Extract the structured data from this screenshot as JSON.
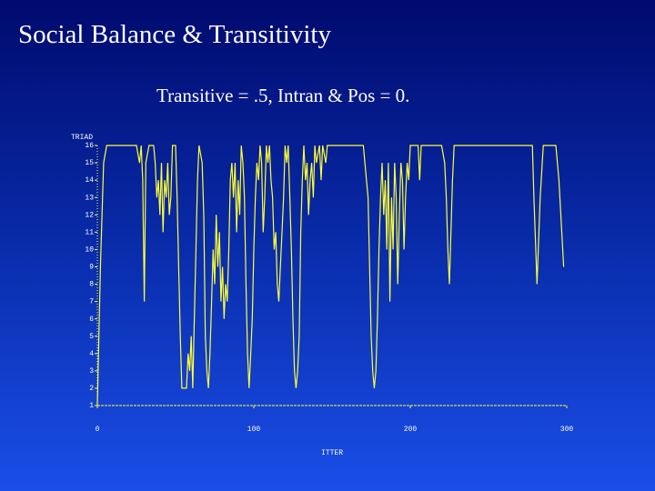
{
  "chart_data": {
    "type": "line",
    "title": "Social Balance & Transitivity",
    "subtitle": "Transitive = .5, Intran & Pos = 0.",
    "y_label": "TRIAD",
    "x_label": "ITTER",
    "xlim": [
      0,
      300
    ],
    "xticks": [
      0,
      100,
      200,
      300
    ],
    "ylim": [
      1,
      16
    ],
    "yticks": [
      1,
      2,
      3,
      4,
      5,
      6,
      7,
      8,
      9,
      10,
      11,
      12,
      13,
      14,
      15,
      16
    ],
    "series": [
      {
        "color": "#ffff33",
        "x": [
          0,
          2,
          4,
          6,
          25,
          27,
          28,
          29,
          30,
          31,
          33,
          36,
          37,
          38,
          39,
          40,
          41,
          42,
          43,
          44,
          45,
          46,
          47,
          48,
          50,
          51,
          52,
          53,
          54,
          55,
          57,
          58,
          59,
          60,
          61,
          62,
          63,
          64,
          65,
          67,
          68,
          69,
          70,
          71,
          72,
          73,
          74,
          75,
          76,
          77,
          78,
          79,
          80,
          81,
          82,
          83,
          84,
          85,
          86,
          87,
          88,
          89,
          90,
          91,
          92,
          93,
          94,
          95,
          96,
          97,
          98,
          99,
          100,
          101,
          102,
          103,
          104,
          105,
          106,
          107,
          108,
          109,
          110,
          111,
          112,
          113,
          114,
          115,
          116,
          117,
          118,
          119,
          120,
          121,
          122,
          123,
          124,
          125,
          126,
          127,
          128,
          129,
          130,
          131,
          132,
          133,
          134,
          135,
          136,
          137,
          138,
          139,
          140,
          142,
          143,
          144,
          146,
          147,
          150,
          170,
          172,
          173,
          174,
          175,
          176,
          177,
          178,
          179,
          180,
          181,
          182,
          183,
          184,
          185,
          186,
          187,
          188,
          189,
          190,
          191,
          192,
          193,
          194,
          195,
          196,
          197,
          198,
          199,
          200,
          205,
          206,
          207,
          220,
          222,
          223,
          224,
          225,
          226,
          227,
          228,
          278,
          279,
          281,
          283,
          285,
          293,
          295,
          298
        ],
        "values": [
          1,
          9,
          15,
          16,
          16,
          15,
          16,
          14,
          7,
          15,
          16,
          16,
          15,
          13,
          14,
          12,
          15,
          11,
          14,
          13,
          15,
          12,
          13,
          16,
          16,
          13,
          9,
          5,
          2,
          2,
          2,
          4,
          3,
          5,
          2,
          6,
          10,
          14,
          16,
          15,
          12,
          5,
          3,
          2,
          4,
          7,
          10,
          8,
          12,
          9,
          11,
          7,
          9,
          6,
          8,
          7,
          10,
          14,
          15,
          13,
          15,
          11,
          14,
          12,
          16,
          15,
          13,
          8,
          4,
          2,
          4,
          6,
          10,
          13,
          15,
          14,
          16,
          15,
          11,
          13,
          16,
          15,
          16,
          14,
          13,
          10,
          11,
          8,
          7,
          9,
          11,
          13,
          16,
          15,
          16,
          13,
          10,
          6,
          3,
          2,
          3,
          5,
          11,
          14,
          16,
          14,
          15,
          12,
          14,
          15,
          13,
          16,
          15,
          16,
          14,
          16,
          15,
          16,
          16,
          16,
          14,
          13,
          9,
          5,
          3,
          2,
          3,
          6,
          10,
          13,
          15,
          12,
          14,
          10,
          15,
          7,
          13,
          10,
          15,
          13,
          8,
          12,
          15,
          14,
          10,
          13,
          15,
          14,
          16,
          16,
          14,
          16,
          16,
          15,
          13,
          10,
          8,
          11,
          14,
          16,
          16,
          13,
          8,
          13,
          16,
          16,
          14,
          9
        ]
      }
    ]
  }
}
